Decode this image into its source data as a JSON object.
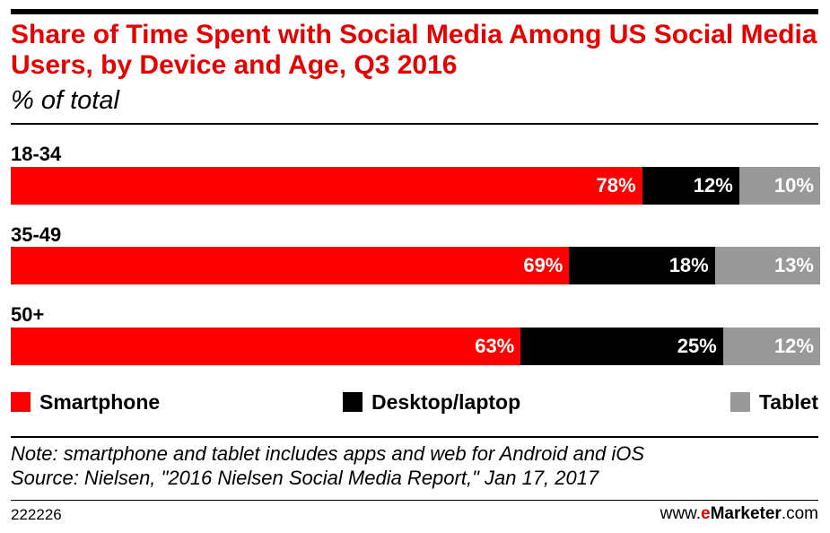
{
  "chart_data": {
    "type": "bar",
    "orientation": "horizontal",
    "stacked": true,
    "title": "Share of Time Spent with Social Media Among US Social Media Users, by Device and Age, Q3 2016",
    "subtitle": "% of total",
    "categories": [
      "18-34",
      "35-49",
      "50+"
    ],
    "series": [
      {
        "name": "Smartphone",
        "values": [
          78,
          69,
          63
        ],
        "color": "#ff0000"
      },
      {
        "name": "Desktop/laptop",
        "values": [
          12,
          18,
          25
        ],
        "color": "#000000"
      },
      {
        "name": "Tablet",
        "values": [
          10,
          13,
          12
        ],
        "color": "#999999"
      }
    ],
    "value_labels": [
      [
        "78%",
        "12%",
        "10%"
      ],
      [
        "69%",
        "18%",
        "13%"
      ],
      [
        "63%",
        "25%",
        "12%"
      ]
    ],
    "xlim": [
      0,
      100
    ],
    "legend_position": "bottom"
  },
  "footer": {
    "note": "Note: smartphone and tablet includes apps and web for Android and iOS",
    "source": "Source: Nielsen, \"2016 Nielsen Social Media Report,\" Jan 17, 2017",
    "chart_id": "222226",
    "brand_prefix": "www.",
    "brand_e": "e",
    "brand_name": "Marketer",
    "brand_suffix": ".com"
  }
}
